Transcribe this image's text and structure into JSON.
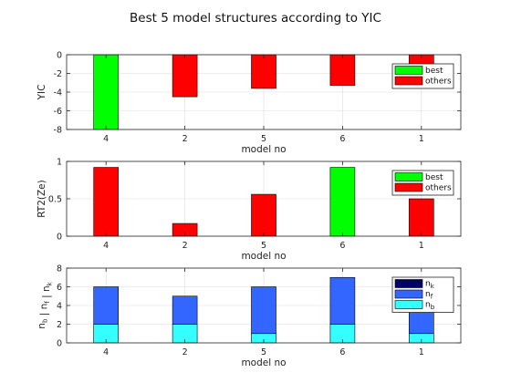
{
  "title": "Best 5 model structures according to YIC",
  "chart_data": [
    {
      "type": "bar",
      "categories": [
        "4",
        "2",
        "5",
        "6",
        "1"
      ],
      "series": [
        {
          "name": "best",
          "color": "#00ff00",
          "values": [
            -8,
            null,
            null,
            null,
            null
          ]
        },
        {
          "name": "others",
          "color": "#ff0000",
          "values": [
            null,
            -4.5,
            -3.6,
            -3.3,
            -1.0
          ]
        }
      ],
      "xlabel": "model no",
      "ylabel": "YIC",
      "ylim": [
        -8,
        0
      ],
      "yticks": [
        0,
        -2,
        -4,
        -6,
        -8
      ],
      "grid": true,
      "legend": "top-right"
    },
    {
      "type": "bar",
      "categories": [
        "4",
        "2",
        "5",
        "6",
        "1"
      ],
      "series": [
        {
          "name": "best",
          "color": "#00ff00",
          "values": [
            null,
            null,
            null,
            0.92,
            null
          ]
        },
        {
          "name": "others",
          "color": "#ff0000",
          "values": [
            0.92,
            0.17,
            0.56,
            null,
            0.5
          ]
        }
      ],
      "xlabel": "model no",
      "ylabel": "RT2(Ze)",
      "ylim": [
        0,
        1
      ],
      "yticks": [
        0,
        0.5,
        1
      ],
      "grid": true,
      "legend": "top-right"
    },
    {
      "type": "bar",
      "stacked": true,
      "categories": [
        "4",
        "2",
        "5",
        "6",
        "1"
      ],
      "series": [
        {
          "name": "n_b",
          "label_base": "n",
          "label_sub": "b",
          "color": "#33ffff",
          "values": [
            2,
            2,
            1,
            2,
            1
          ]
        },
        {
          "name": "n_f",
          "label_base": "n",
          "label_sub": "f",
          "color": "#3366ff",
          "values": [
            4,
            3,
            5,
            5,
            3
          ]
        },
        {
          "name": "n_k",
          "label_base": "n",
          "label_sub": "k",
          "color": "#000066",
          "values": [
            0,
            0,
            0,
            0,
            0
          ]
        }
      ],
      "xlabel": "model no",
      "ylabel": "n_b | n_f | n_k",
      "ylabel_parts": [
        [
          "n",
          "b"
        ],
        [
          "n",
          "f"
        ],
        [
          "n",
          "k"
        ]
      ],
      "ylim": [
        0,
        8
      ],
      "yticks": [
        0,
        2,
        4,
        6,
        8
      ],
      "grid": true,
      "legend": "top-right",
      "legend_order": [
        2,
        1,
        0
      ]
    }
  ]
}
